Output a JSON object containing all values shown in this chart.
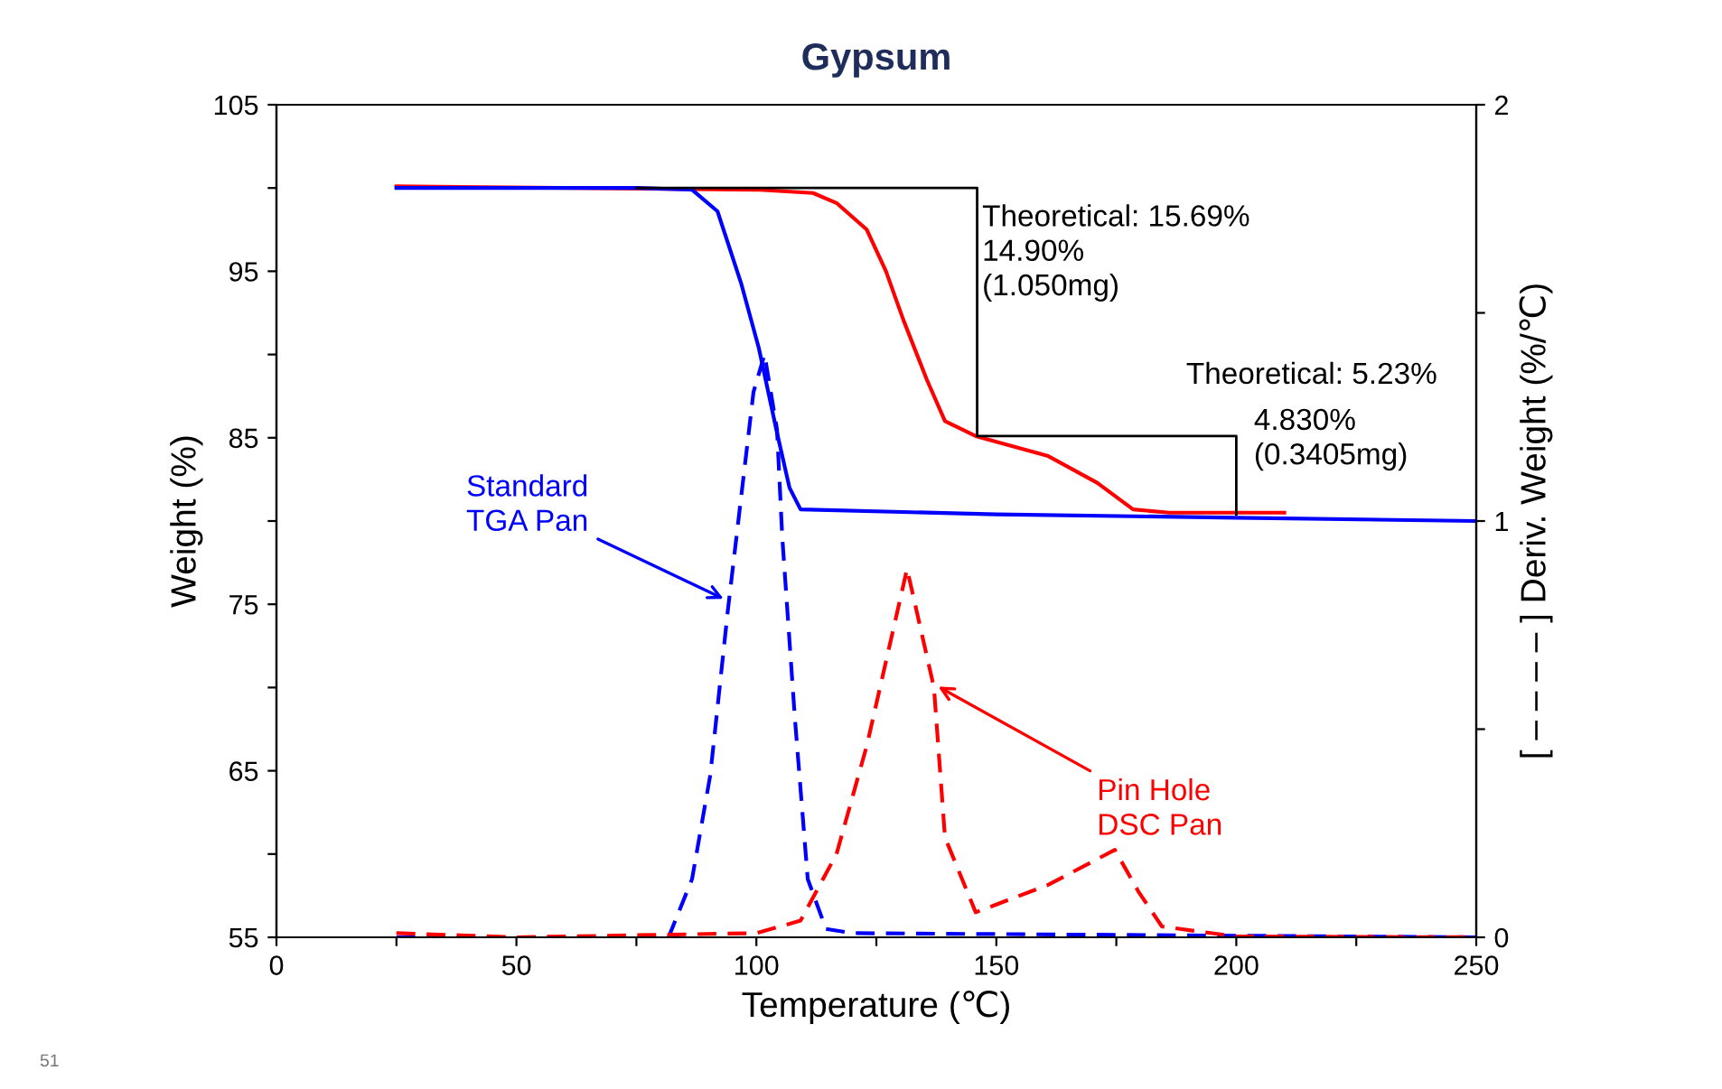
{
  "chart_data": {
    "type": "line",
    "title": "Gypsum",
    "xlabel": "Temperature (℃)",
    "ylabel": "Weight (%)",
    "y2label": "[ – – – – ] Deriv. Weight (%/℃)",
    "xlim": [
      0,
      250
    ],
    "xticks": [
      0,
      {
        "value": 25,
        "label": null
      },
      50,
      {
        "value": 75,
        "label": null
      },
      100,
      {
        "value": 125,
        "label": null
      },
      150,
      {
        "value": 175,
        "label": null
      },
      200,
      {
        "value": 225,
        "label": null
      },
      250
    ],
    "ylim": [
      55,
      105
    ],
    "yticks": [
      55,
      {
        "value": 60,
        "label": null
      },
      65,
      {
        "value": 70,
        "label": null
      },
      75,
      {
        "value": 80,
        "label": null
      },
      85,
      {
        "value": 90,
        "label": null
      },
      95,
      {
        "value": 100,
        "label": null
      },
      105
    ],
    "y2lim": [
      0,
      2
    ],
    "y2ticks": [
      0,
      {
        "value": 0.5,
        "label": null
      },
      1,
      {
        "value": 1.5,
        "label": null
      },
      2
    ],
    "grid": false,
    "legend": false,
    "series": [
      {
        "color": "#ff0000",
        "line_style": "solid",
        "x": [
          25,
          100,
          111.8,
          116.7,
          123,
          127,
          130.6,
          135.5,
          139.3,
          145.7,
          160.8,
          171,
          178.5,
          186,
          210
        ],
        "values": [
          100.1,
          99.9,
          99.7,
          99.1,
          97.5,
          95.0,
          92.1,
          88.5,
          86.0,
          85.1,
          83.9,
          82.3,
          80.7,
          80.5,
          80.5
        ]
      },
      {
        "color": "#0000ff",
        "line_style": "solid",
        "x": [
          25,
          75,
          86.6,
          91.9,
          96.8,
          100.5,
          104.3,
          106.9,
          109.2,
          150,
          200,
          250
        ],
        "values": [
          100.0,
          100.0,
          99.9,
          98.6,
          94.3,
          90.4,
          85.3,
          82.0,
          80.7,
          80.4,
          80.2,
          80.0
        ]
      },
      {
        "color": "#0000ff",
        "line_style": "dashed",
        "axis": "y2",
        "x": [
          25,
          81.7,
          86.6,
          90.4,
          94.1,
          99.4,
          101.7,
          104.3,
          105.4,
          108,
          110.7,
          114.5,
          120,
          250
        ],
        "values": [
          0,
          0,
          0.14,
          0.39,
          0.79,
          1.31,
          1.4,
          1.22,
          0.96,
          0.53,
          0.14,
          0.02,
          0.01,
          0
        ]
      },
      {
        "color": "#ff0000",
        "line_style": "dashed",
        "axis": "y2",
        "x": [
          25,
          50,
          100,
          109.2,
          116.7,
          123,
          131.4,
          137,
          139.3,
          145.7,
          160.8,
          174.7,
          179.6,
          184.5,
          200,
          250
        ],
        "values": [
          0.01,
          0,
          0.01,
          0.04,
          0.2,
          0.46,
          0.885,
          0.6,
          0.24,
          0.06,
          0.126,
          0.21,
          0.11,
          0.026,
          0.002,
          0
        ]
      },
      {
        "color": "#000000",
        "line_style": "solid",
        "x": [
          75,
          146,
          146,
          146,
          200,
          200
        ],
        "values": [
          100.0,
          100.0,
          85.1,
          85.1,
          85.1,
          80.4
        ]
      }
    ],
    "annotations": [
      {
        "text": "Theoretical: 15.69%\n14.90%\n(1.050mg)",
        "x": 146,
        "y": 96.1
      },
      {
        "text": "Theoretical: 5.23%",
        "x": 200,
        "y": 85.1
      },
      {
        "text": "4.830%\n(0.3405mg)",
        "x": 200,
        "y": 82.8
      },
      {
        "text": "Standard\nTGA Pan",
        "x": 94.1,
        "y": 75.2
      },
      {
        "text": "Pin Hole\nDSC Pan",
        "x": 137,
        "y": 70.2
      },
      "51"
    ]
  }
}
